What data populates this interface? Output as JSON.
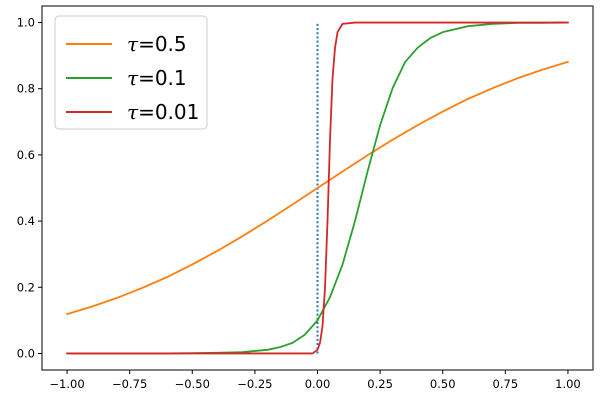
{
  "chart_data": {
    "type": "line",
    "xlim": [
      -1.1,
      1.1
    ],
    "ylim": [
      -0.05,
      1.05
    ],
    "grid": false,
    "legend_position": "top-left",
    "x_ticks": [
      -1.0,
      -0.75,
      -0.5,
      -0.25,
      0.0,
      0.25,
      0.5,
      0.75,
      1.0
    ],
    "x_tick_labels": [
      "−1.00",
      "−0.75",
      "−0.50",
      "−0.25",
      "0.00",
      "0.25",
      "0.50",
      "0.75",
      "1.00"
    ],
    "y_ticks": [
      0.0,
      0.2,
      0.4,
      0.6,
      0.8,
      1.0
    ],
    "y_tick_labels": [
      "0.0",
      "0.2",
      "0.4",
      "0.6",
      "0.8",
      "1.0"
    ],
    "reference_line": {
      "x": 0.0,
      "y_range": [
        0.0,
        1.0
      ],
      "style": "dotted",
      "color": "#1f77b4"
    },
    "series": [
      {
        "name": "τ=0.5",
        "label_symbol": "τ",
        "label_value": "=0.5",
        "color": "#ff7f0e",
        "x": [
          -1.0,
          -0.9,
          -0.8,
          -0.7,
          -0.6,
          -0.5,
          -0.4,
          -0.3,
          -0.2,
          -0.1,
          0.0,
          0.1,
          0.2,
          0.3,
          0.4,
          0.5,
          0.6,
          0.7,
          0.8,
          0.9,
          1.0
        ],
        "y": [
          0.119,
          0.142,
          0.168,
          0.198,
          0.231,
          0.269,
          0.31,
          0.354,
          0.401,
          0.45,
          0.5,
          0.55,
          0.599,
          0.646,
          0.69,
          0.731,
          0.769,
          0.802,
          0.832,
          0.858,
          0.881
        ]
      },
      {
        "name": "τ=0.1",
        "label_symbol": "τ",
        "label_value": "=0.1",
        "color": "#2ca02c",
        "x": [
          -1.0,
          -0.8,
          -0.6,
          -0.5,
          -0.4,
          -0.3,
          -0.2,
          -0.15,
          -0.1,
          -0.05,
          0.0,
          0.05,
          0.1,
          0.15,
          0.2,
          0.25,
          0.3,
          0.35,
          0.4,
          0.45,
          0.5,
          0.6,
          0.7,
          0.8,
          0.9,
          1.0
        ],
        "y": [
          0.0,
          0.0,
          0.0,
          0.001,
          0.002,
          0.004,
          0.011,
          0.019,
          0.032,
          0.057,
          0.1,
          0.17,
          0.269,
          0.401,
          0.55,
          0.69,
          0.802,
          0.881,
          0.924,
          0.953,
          0.971,
          0.989,
          0.996,
          0.999,
          0.999,
          1.0
        ]
      },
      {
        "name": "τ=0.01",
        "label_symbol": "τ",
        "label_value": "=0.01",
        "color": "#d62728",
        "x": [
          -1.0,
          -0.1,
          -0.02,
          0.0,
          0.01,
          0.02,
          0.03,
          0.04,
          0.05,
          0.06,
          0.07,
          0.08,
          0.1,
          0.15,
          1.0
        ],
        "y": [
          0.0,
          0.0,
          0.0,
          0.011,
          0.032,
          0.083,
          0.198,
          0.401,
          0.646,
          0.832,
          0.924,
          0.971,
          0.996,
          1.0,
          1.0
        ]
      }
    ]
  }
}
